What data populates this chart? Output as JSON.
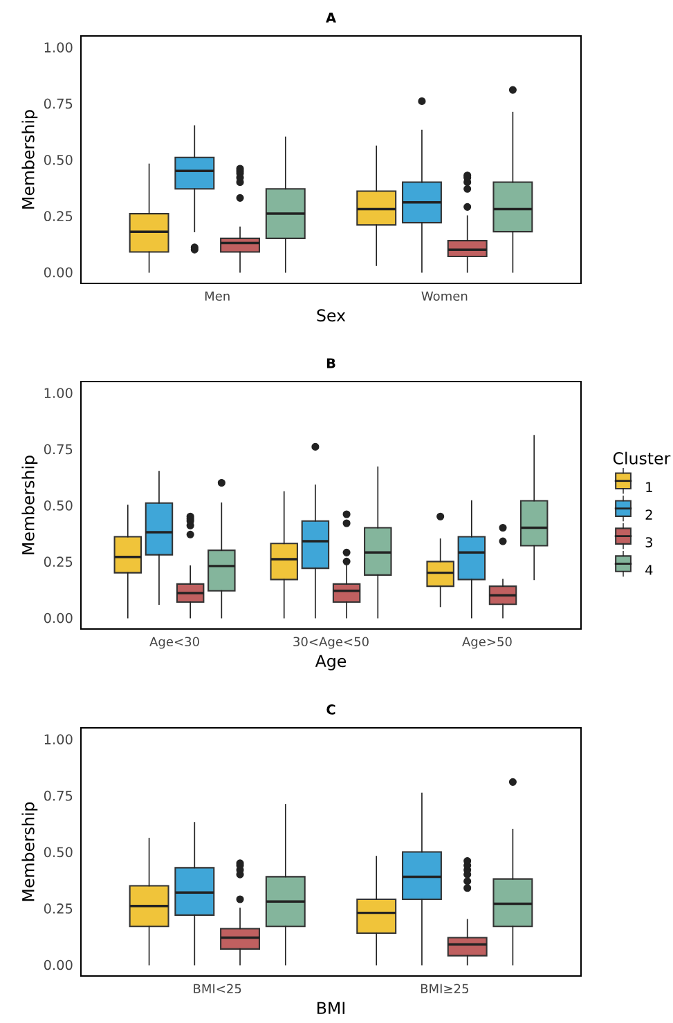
{
  "chart_data": [
    {
      "type": "box",
      "title": "A",
      "xlabel": "Sex",
      "ylabel": "Membership",
      "categories": [
        "Men",
        "Women"
      ],
      "ylim": [
        -0.05,
        1.05
      ],
      "yticks": [
        {
          "value": 0,
          "label": "0.00"
        },
        {
          "value": 0.25,
          "label": "0.25"
        },
        {
          "value": 0.5,
          "label": "0.50"
        },
        {
          "value": 0.75,
          "label": "0.75"
        },
        {
          "value": 1,
          "label": "1.00"
        }
      ],
      "legend": "right",
      "legend_title": "Cluster",
      "series": [
        {
          "name": "1",
          "color": "#f0c43a",
          "boxes": [
            {
              "low": 0,
              "q1": 0.09,
              "median": 0.18,
              "q3": 0.26,
              "high": 0.48
            },
            {
              "low": 0.03,
              "q1": 0.21,
              "median": 0.28,
              "q3": 0.36,
              "high": 0.56
            }
          ]
        },
        {
          "name": "2",
          "color": "#3fa6d8",
          "boxes": [
            {
              "low": 0.18,
              "q1": 0.37,
              "median": 0.45,
              "q3": 0.51,
              "high": 0.65,
              "outliers": [
                0.1,
                0.11
              ]
            },
            {
              "low": 0,
              "q1": 0.22,
              "median": 0.31,
              "q3": 0.4,
              "high": 0.63,
              "outliers": [
                0.76
              ]
            }
          ]
        },
        {
          "name": "3",
          "color": "#c06060",
          "boxes": [
            {
              "low": 0,
              "q1": 0.09,
              "median": 0.13,
              "q3": 0.15,
              "high": 0.2,
              "outliers": [
                0.33,
                0.4,
                0.42,
                0.44,
                0.45,
                0.46
              ]
            },
            {
              "low": 0,
              "q1": 0.07,
              "median": 0.1,
              "q3": 0.14,
              "high": 0.25,
              "outliers": [
                0.29,
                0.37,
                0.4,
                0.42,
                0.43
              ]
            }
          ]
        },
        {
          "name": "4",
          "color": "#84b59c",
          "boxes": [
            {
              "low": 0,
              "q1": 0.15,
              "median": 0.26,
              "q3": 0.37,
              "high": 0.6
            },
            {
              "low": 0,
              "q1": 0.18,
              "median": 0.28,
              "q3": 0.4,
              "high": 0.71,
              "outliers": [
                0.81
              ]
            }
          ]
        }
      ]
    },
    {
      "type": "box",
      "title": "B",
      "xlabel": "Age",
      "ylabel": "Membership",
      "categories": [
        "Age<30",
        "30<Age<50",
        "Age>50"
      ],
      "ylim": [
        -0.05,
        1.05
      ],
      "yticks": [
        {
          "value": 0,
          "label": "0.00"
        },
        {
          "value": 0.25,
          "label": "0.25"
        },
        {
          "value": 0.5,
          "label": "0.50"
        },
        {
          "value": 0.75,
          "label": "0.75"
        },
        {
          "value": 1,
          "label": "1.00"
        }
      ],
      "series": [
        {
          "name": "1",
          "color": "#f0c43a",
          "boxes": [
            {
              "low": 0,
              "q1": 0.2,
              "median": 0.27,
              "q3": 0.36,
              "high": 0.5
            },
            {
              "low": 0,
              "q1": 0.17,
              "median": 0.26,
              "q3": 0.33,
              "high": 0.56
            },
            {
              "low": 0.05,
              "q1": 0.14,
              "median": 0.2,
              "q3": 0.25,
              "high": 0.35,
              "outliers": [
                0.45
              ]
            }
          ]
        },
        {
          "name": "2",
          "color": "#3fa6d8",
          "boxes": [
            {
              "low": 0.06,
              "q1": 0.28,
              "median": 0.38,
              "q3": 0.51,
              "high": 0.65
            },
            {
              "low": 0,
              "q1": 0.22,
              "median": 0.34,
              "q3": 0.43,
              "high": 0.59,
              "outliers": [
                0.76
              ]
            },
            {
              "low": 0,
              "q1": 0.17,
              "median": 0.29,
              "q3": 0.36,
              "high": 0.52
            }
          ]
        },
        {
          "name": "3",
          "color": "#c06060",
          "boxes": [
            {
              "low": 0,
              "q1": 0.07,
              "median": 0.11,
              "q3": 0.15,
              "high": 0.23,
              "outliers": [
                0.37,
                0.41,
                0.43,
                0.44,
                0.45
              ]
            },
            {
              "low": 0,
              "q1": 0.07,
              "median": 0.12,
              "q3": 0.15,
              "high": 0.23,
              "outliers": [
                0.25,
                0.29,
                0.42,
                0.46
              ]
            },
            {
              "low": 0,
              "q1": 0.06,
              "median": 0.1,
              "q3": 0.14,
              "high": 0.17,
              "outliers": [
                0.34,
                0.4
              ]
            }
          ]
        },
        {
          "name": "4",
          "color": "#84b59c",
          "boxes": [
            {
              "low": 0,
              "q1": 0.12,
              "median": 0.23,
              "q3": 0.3,
              "high": 0.51,
              "outliers": [
                0.6
              ]
            },
            {
              "low": 0,
              "q1": 0.19,
              "median": 0.29,
              "q3": 0.4,
              "high": 0.67
            },
            {
              "low": 0.17,
              "q1": 0.32,
              "median": 0.4,
              "q3": 0.52,
              "high": 0.81
            }
          ]
        }
      ]
    },
    {
      "type": "box",
      "title": "C",
      "xlabel": "BMI",
      "ylabel": "Membership",
      "categories": [
        "BMI<25",
        "BMI≥25"
      ],
      "ylim": [
        -0.05,
        1.05
      ],
      "yticks": [
        {
          "value": 0,
          "label": "0.00"
        },
        {
          "value": 0.25,
          "label": "0.25"
        },
        {
          "value": 0.5,
          "label": "0.50"
        },
        {
          "value": 0.75,
          "label": "0.75"
        },
        {
          "value": 1,
          "label": "1.00"
        }
      ],
      "series": [
        {
          "name": "1",
          "color": "#f0c43a",
          "boxes": [
            {
              "low": 0,
              "q1": 0.17,
              "median": 0.26,
              "q3": 0.35,
              "high": 0.56
            },
            {
              "low": 0,
              "q1": 0.14,
              "median": 0.23,
              "q3": 0.29,
              "high": 0.48
            }
          ]
        },
        {
          "name": "2",
          "color": "#3fa6d8",
          "boxes": [
            {
              "low": 0,
              "q1": 0.22,
              "median": 0.32,
              "q3": 0.43,
              "high": 0.63
            },
            {
              "low": 0,
              "q1": 0.29,
              "median": 0.39,
              "q3": 0.5,
              "high": 0.76
            }
          ]
        },
        {
          "name": "3",
          "color": "#c06060",
          "boxes": [
            {
              "low": 0,
              "q1": 0.07,
              "median": 0.12,
              "q3": 0.16,
              "high": 0.25,
              "outliers": [
                0.29,
                0.4,
                0.42,
                0.44,
                0.45
              ]
            },
            {
              "low": 0,
              "q1": 0.04,
              "median": 0.09,
              "q3": 0.12,
              "high": 0.2,
              "outliers": [
                0.34,
                0.37,
                0.4,
                0.42,
                0.44,
                0.46
              ]
            }
          ]
        },
        {
          "name": "4",
          "color": "#84b59c",
          "boxes": [
            {
              "low": 0,
              "q1": 0.17,
              "median": 0.28,
              "q3": 0.39,
              "high": 0.71
            },
            {
              "low": 0,
              "q1": 0.17,
              "median": 0.27,
              "q3": 0.38,
              "high": 0.6,
              "outliers": [
                0.81
              ]
            }
          ]
        }
      ]
    }
  ]
}
